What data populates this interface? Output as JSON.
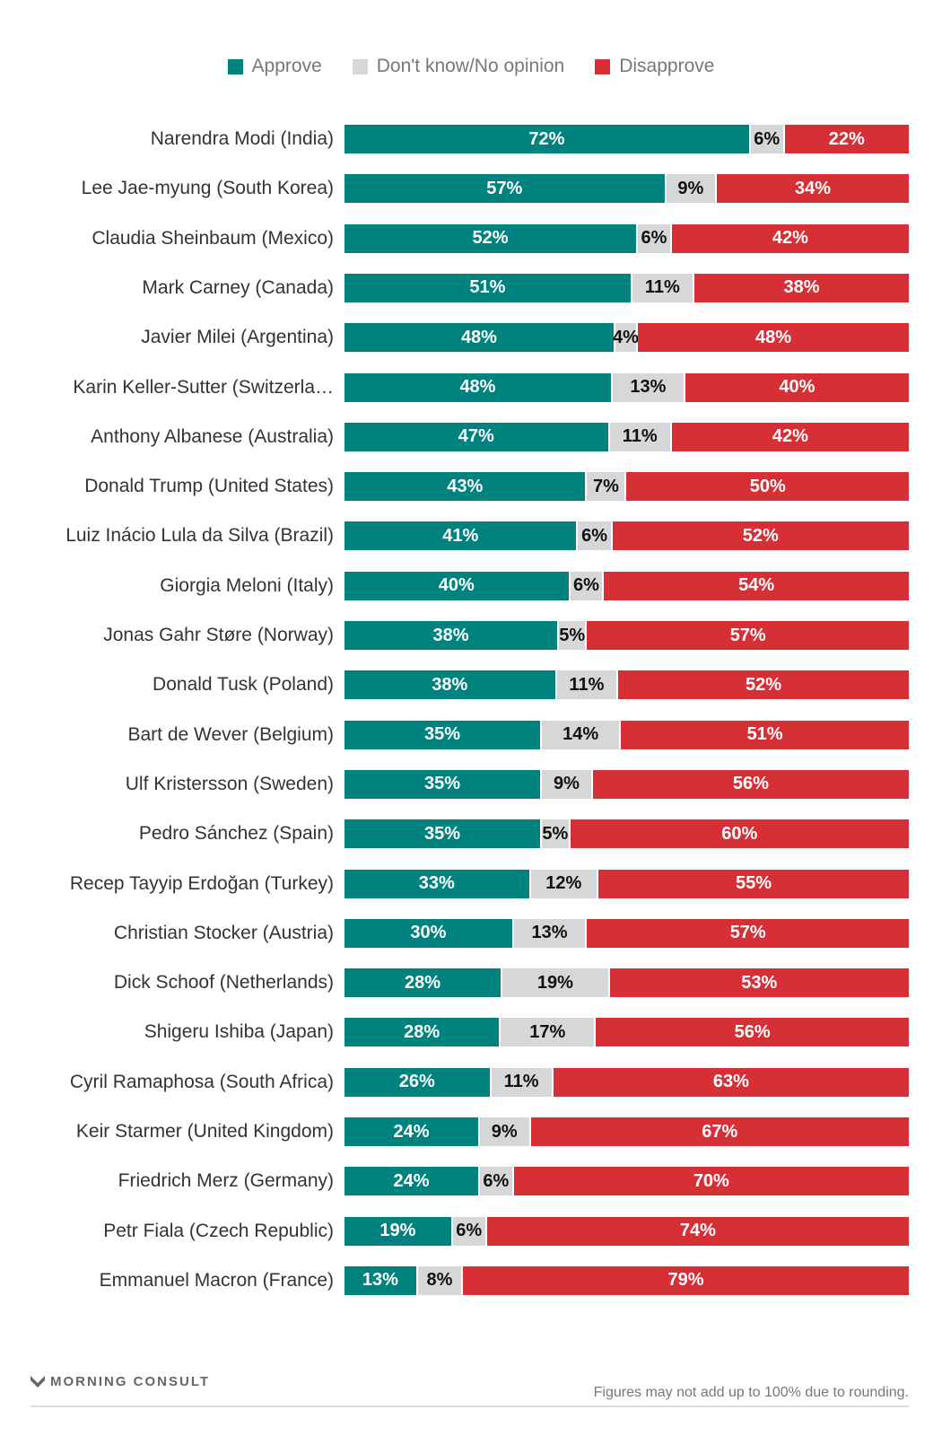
{
  "chart_data": {
    "type": "bar",
    "stacked": true,
    "orientation": "horizontal",
    "legend_position": "top-center",
    "colors": {
      "approve": "#00827f",
      "dont_know": "#d5d7d8",
      "disapprove": "#d72f36"
    },
    "legend": [
      "Approve",
      "Don't know/No opinion",
      "Disapprove"
    ],
    "categories": [
      "Narendra Modi (India)",
      "Lee Jae-myung (South Korea)",
      "Claudia Sheinbaum (Mexico)",
      "Mark Carney (Canada)",
      "Javier Milei (Argentina)",
      "Karin Keller-Sutter (Switzerla…",
      "Anthony Albanese (Australia)",
      "Donald Trump (United States)",
      "Luiz Inácio Lula da Silva (Brazil)",
      "Giorgia Meloni (Italy)",
      "Jonas Gahr Støre (Norway)",
      "Donald Tusk (Poland)",
      "Bart de Wever (Belgium)",
      "Ulf Kristersson (Sweden)",
      "Pedro Sánchez (Spain)",
      "Recep Tayyip Erdoğan (Turkey)",
      "Christian Stocker (Austria)",
      "Dick Schoof (Netherlands)",
      "Shigeru Ishiba (Japan)",
      "Cyril Ramaphosa (South Africa)",
      "Keir Starmer (United Kingdom)",
      "Friedrich Merz (Germany)",
      "Petr Fiala (Czech Republic)",
      "Emmanuel Macron (France)"
    ],
    "series": [
      {
        "name": "Approve",
        "values": [
          72,
          57,
          52,
          51,
          48,
          48,
          47,
          43,
          41,
          40,
          38,
          38,
          35,
          35,
          35,
          33,
          30,
          28,
          28,
          26,
          24,
          24,
          19,
          13
        ]
      },
      {
        "name": "Don't know/No opinion",
        "values": [
          6,
          9,
          6,
          11,
          4,
          13,
          11,
          7,
          6,
          6,
          5,
          11,
          14,
          9,
          5,
          12,
          13,
          19,
          17,
          11,
          9,
          6,
          6,
          8
        ]
      },
      {
        "name": "Disapprove",
        "values": [
          22,
          34,
          42,
          38,
          48,
          40,
          42,
          50,
          52,
          54,
          57,
          52,
          51,
          56,
          60,
          55,
          57,
          53,
          56,
          63,
          67,
          70,
          74,
          79
        ]
      }
    ],
    "value_suffix": "%"
  },
  "footer": {
    "logo": "MORNING CONSULT",
    "note": "Figures may not add up to 100% due to rounding."
  }
}
